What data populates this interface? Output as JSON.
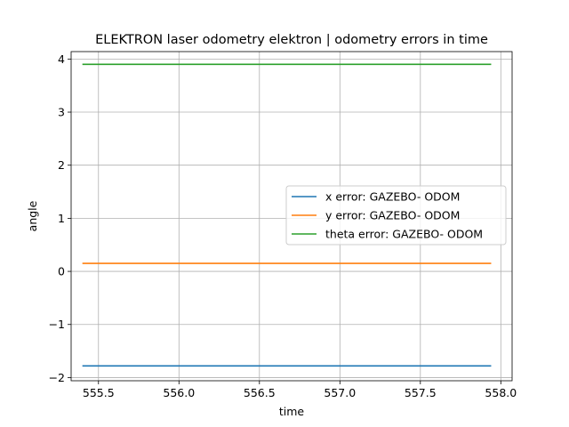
{
  "chart_data": {
    "type": "line",
    "title": "ELEKTRON laser odometry elektron | odometry errors in time",
    "xlabel": "time",
    "ylabel": "angle",
    "xlim": [
      555.33,
      558.07
    ],
    "ylim": [
      -2.06,
      4.14
    ],
    "xticks": [
      555.5,
      556.0,
      556.5,
      557.0,
      557.5,
      558.0
    ],
    "xtick_labels": [
      "555.5",
      "556.0",
      "556.5",
      "557.0",
      "557.5",
      "558.0"
    ],
    "yticks": [
      -2,
      -1,
      0,
      1,
      2,
      3,
      4
    ],
    "ytick_labels": [
      "−2",
      "−1",
      "0",
      "1",
      "2",
      "3",
      "4"
    ],
    "grid": true,
    "legend_position": "center-right",
    "series": [
      {
        "name": "x error: GAZEBO- ODOM",
        "color": "#1f77b4",
        "x": [
          555.4,
          557.94
        ],
        "y": [
          -1.78,
          -1.78
        ]
      },
      {
        "name": "y error: GAZEBO- ODOM",
        "color": "#ff7f0e",
        "x": [
          555.4,
          557.94
        ],
        "y": [
          0.15,
          0.15
        ]
      },
      {
        "name": "theta error: GAZEBO- ODOM",
        "color": "#2ca02c",
        "x": [
          555.4,
          557.94
        ],
        "y": [
          3.9,
          3.9
        ]
      }
    ]
  }
}
